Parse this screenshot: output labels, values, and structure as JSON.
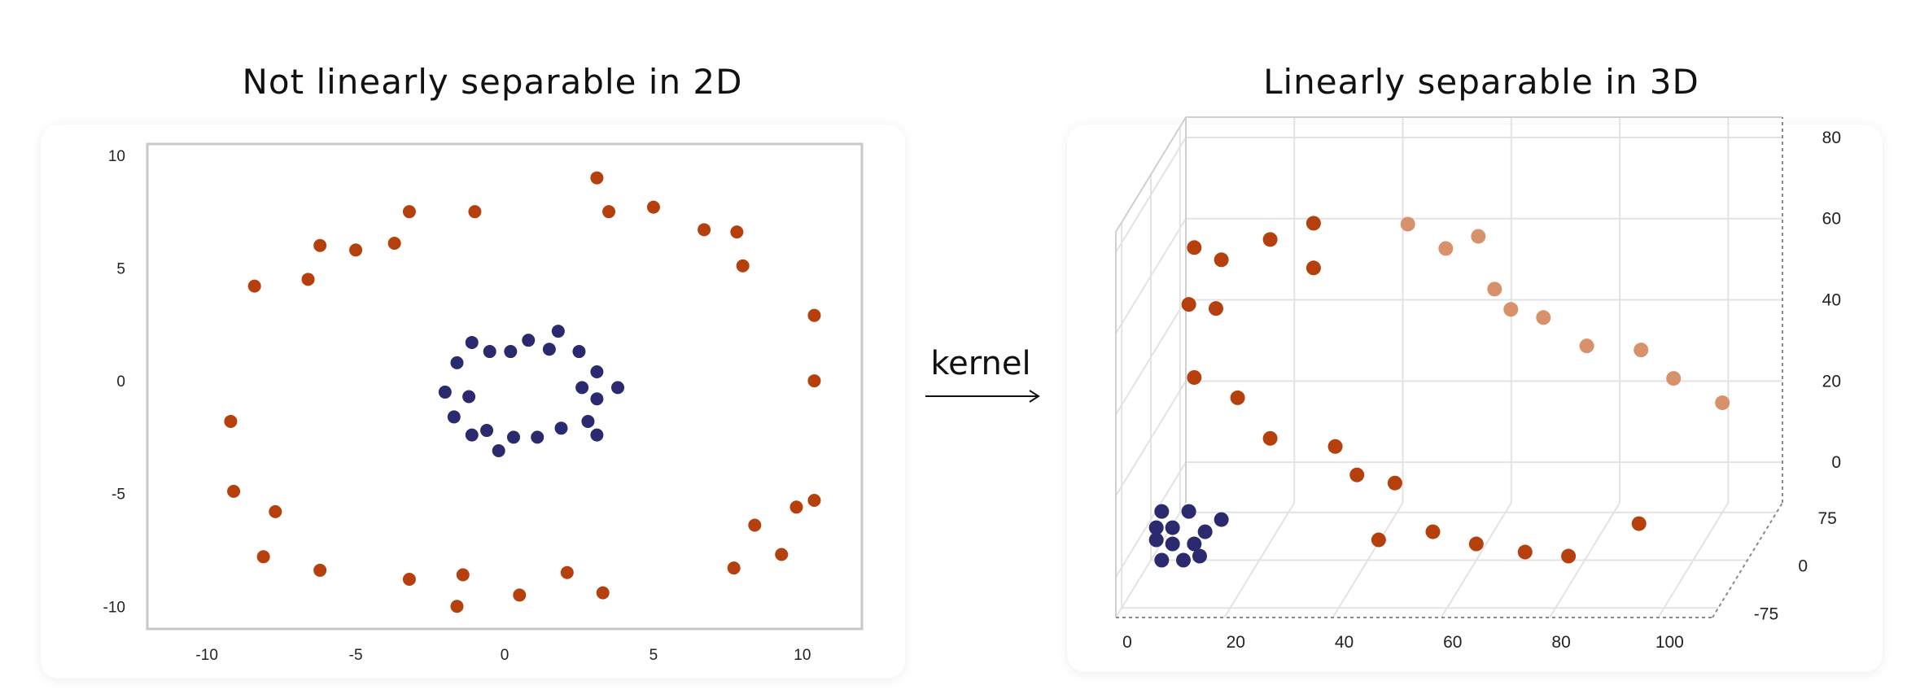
{
  "chart_data": [
    {
      "type": "scatter",
      "title": "Not linearly separable in 2D",
      "xlabel": "",
      "ylabel": "",
      "xlim": [
        -12,
        12
      ],
      "ylim": [
        -11,
        10.5
      ],
      "xticks": [
        -10,
        -5,
        0,
        5,
        10
      ],
      "yticks": [
        10,
        5,
        0,
        -5,
        -10
      ],
      "grid": false,
      "series": [
        {
          "color": "#b5400e",
          "points": [
            [
              -8.4,
              4.2
            ],
            [
              -6.6,
              4.5
            ],
            [
              -6.2,
              6.0
            ],
            [
              -5.0,
              5.8
            ],
            [
              -3.7,
              6.1
            ],
            [
              -3.2,
              7.5
            ],
            [
              -1.0,
              7.5
            ],
            [
              3.1,
              9.0
            ],
            [
              3.5,
              7.5
            ],
            [
              5.0,
              7.7
            ],
            [
              6.7,
              6.7
            ],
            [
              7.8,
              6.6
            ],
            [
              8.0,
              5.1
            ],
            [
              10.4,
              2.9
            ],
            [
              10.4,
              0.0
            ],
            [
              -9.2,
              -1.8
            ],
            [
              -9.1,
              -4.9
            ],
            [
              -7.7,
              -5.8
            ],
            [
              -8.1,
              -7.8
            ],
            [
              -6.2,
              -8.4
            ],
            [
              -3.2,
              -8.8
            ],
            [
              -1.4,
              -8.6
            ],
            [
              -1.6,
              -10.0
            ],
            [
              0.5,
              -9.5
            ],
            [
              2.1,
              -8.5
            ],
            [
              3.3,
              -9.4
            ],
            [
              7.7,
              -8.3
            ],
            [
              8.4,
              -6.4
            ],
            [
              9.3,
              -7.7
            ],
            [
              9.8,
              -5.6
            ],
            [
              10.4,
              -5.3
            ]
          ]
        },
        {
          "color": "#2b2a6e",
          "points": [
            [
              -1.1,
              1.7
            ],
            [
              -1.6,
              0.8
            ],
            [
              -0.5,
              1.3
            ],
            [
              0.2,
              1.3
            ],
            [
              0.8,
              1.8
            ],
            [
              1.5,
              1.4
            ],
            [
              1.8,
              2.2
            ],
            [
              2.5,
              1.3
            ],
            [
              -2.0,
              -0.5
            ],
            [
              -1.2,
              -0.7
            ],
            [
              3.1,
              0.4
            ],
            [
              2.6,
              -0.3
            ],
            [
              3.1,
              -0.8
            ],
            [
              3.8,
              -0.3
            ],
            [
              -1.7,
              -1.6
            ],
            [
              -1.1,
              -2.4
            ],
            [
              -0.6,
              -2.2
            ],
            [
              0.3,
              -2.5
            ],
            [
              -0.2,
              -3.1
            ],
            [
              1.1,
              -2.5
            ],
            [
              1.9,
              -2.1
            ],
            [
              2.8,
              -1.8
            ],
            [
              3.1,
              -2.4
            ]
          ]
        }
      ]
    },
    {
      "type": "scatter",
      "title": "Linearly separable in 3D",
      "xlabel": "",
      "ylabel": "",
      "zlabel": "",
      "xlim": [
        0,
        110
      ],
      "ylim": [
        -90,
        90
      ],
      "zlim": [
        -10,
        85
      ],
      "xticks": [
        0,
        20,
        40,
        60,
        80,
        100
      ],
      "yticks": [
        -75,
        0,
        75
      ],
      "zticks": [
        0,
        20,
        40,
        60,
        80
      ],
      "grid": true,
      "series": [
        {
          "color": "#b5400e",
          "points": [
            [
              8,
              0,
              67
            ],
            [
              13,
              0,
              64
            ],
            [
              22,
              0,
              69
            ],
            [
              30,
              0,
              73
            ],
            [
              7,
              0,
              53
            ],
            [
              12,
              0,
              52
            ],
            [
              30,
              0,
              62
            ],
            [
              8,
              0,
              35
            ],
            [
              16,
              0,
              30
            ],
            [
              22,
              0,
              20
            ],
            [
              34,
              0,
              18
            ],
            [
              38,
              0,
              11
            ],
            [
              45,
              0,
              9
            ],
            [
              42,
              0,
              -5
            ],
            [
              52,
              0,
              -3
            ],
            [
              60,
              0,
              -6
            ],
            [
              69,
              0,
              -8
            ],
            [
              77,
              0,
              -9
            ],
            [
              90,
              0,
              -1
            ],
            [
              42,
              75,
              61
            ],
            [
              49,
              75,
              55
            ],
            [
              55,
              75,
              58
            ],
            [
              58,
              75,
              45
            ],
            [
              61,
              75,
              40
            ],
            [
              67,
              75,
              38
            ],
            [
              75,
              75,
              31
            ],
            [
              85,
              75,
              30
            ],
            [
              91,
              75,
              23
            ],
            [
              100,
              75,
              17
            ]
          ]
        },
        {
          "color": "#2b2a6e",
          "points": [
            [
              2,
              0,
              2
            ],
            [
              7,
              0,
              2
            ],
            [
              1,
              0,
              -2
            ],
            [
              4,
              0,
              -2
            ],
            [
              1,
              0,
              -5
            ],
            [
              4,
              0,
              -6
            ],
            [
              8,
              0,
              -6
            ],
            [
              10,
              0,
              -3
            ],
            [
              13,
              0,
              0
            ],
            [
              2,
              0,
              -10
            ],
            [
              6,
              0,
              -10
            ],
            [
              9,
              0,
              -9
            ]
          ]
        }
      ]
    }
  ],
  "kernel_label": "kernel",
  "colors": {
    "orange": "#b5400e",
    "orange_faded": "#d8926b",
    "navy": "#2b2a6e",
    "frame": "#c8c8c8",
    "grid": "#e3e3e3"
  }
}
